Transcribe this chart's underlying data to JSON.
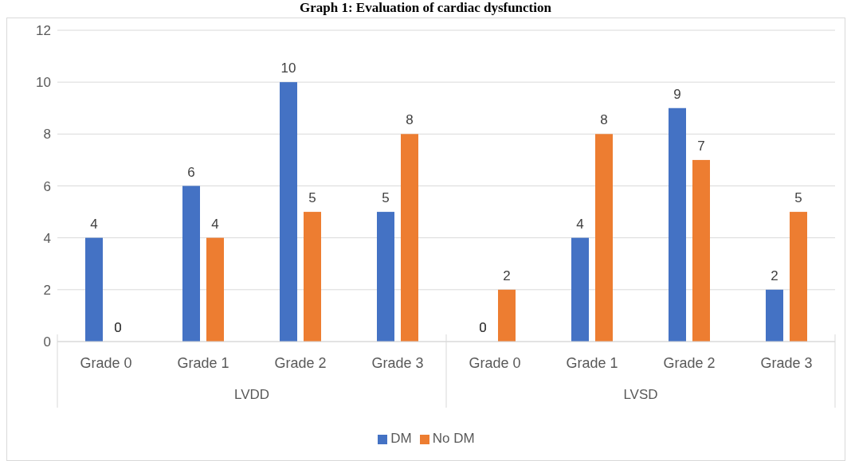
{
  "chart_data": {
    "type": "bar",
    "title": "Graph 1: Evaluation of cardiac dysfunction",
    "categories": [
      "Grade 0",
      "Grade 1",
      "Grade 2",
      "Grade 3",
      "Grade 0",
      "Grade 1",
      "Grade 2",
      "Grade 3"
    ],
    "annotations": [
      "LVDD",
      "LVSD"
    ],
    "series": [
      {
        "name": "DM",
        "color": "#4472c4",
        "values": [
          4,
          6,
          10,
          5,
          0,
          4,
          9,
          2
        ]
      },
      {
        "name": "No DM",
        "color": "#ed7d31",
        "values": [
          0,
          4,
          5,
          8,
          2,
          8,
          7,
          5
        ]
      }
    ],
    "ylim": [
      0,
      12
    ],
    "yticks": [
      0,
      2,
      4,
      6,
      8,
      10,
      12
    ],
    "grid": "y",
    "legend": "bottom",
    "data_labels": true
  }
}
